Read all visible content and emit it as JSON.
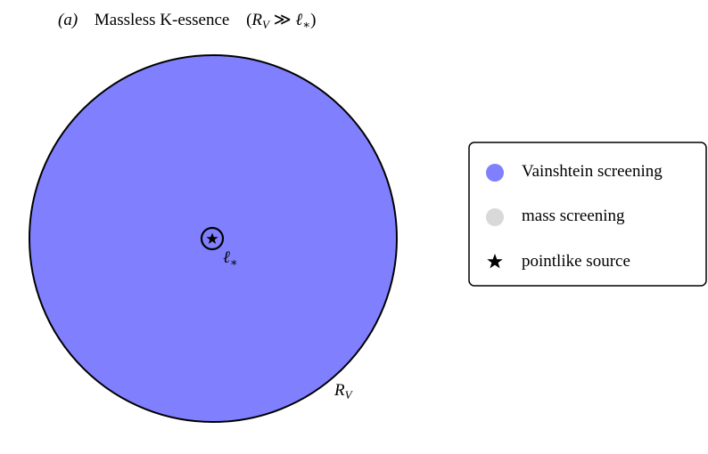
{
  "title": {
    "label": "(a)",
    "text": "Massless K-essence",
    "condition": {
      "open": "(",
      "lhs": {
        "base": "R",
        "sub": "V"
      },
      "relation": " ≫ ",
      "rhs": {
        "base": "ℓ",
        "sub": "∗"
      },
      "close": ")"
    }
  },
  "source_label": {
    "base": "ℓ",
    "sub": "∗"
  },
  "radius_label": {
    "base": "R",
    "sub": "V"
  },
  "legend": [
    {
      "label": "Vainshtein screening",
      "color": "#8080ff"
    },
    {
      "label": "mass screening",
      "color": "#d9d9d9"
    },
    {
      "label": "pointlike source",
      "color": "#000000"
    }
  ]
}
